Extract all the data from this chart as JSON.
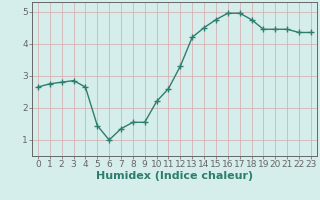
{
  "x": [
    0,
    1,
    2,
    3,
    4,
    5,
    6,
    7,
    8,
    9,
    10,
    11,
    12,
    13,
    14,
    15,
    16,
    17,
    18,
    19,
    20,
    21,
    22,
    23
  ],
  "y": [
    2.65,
    2.75,
    2.8,
    2.85,
    2.65,
    1.45,
    1.0,
    1.35,
    1.55,
    1.55,
    2.2,
    2.6,
    3.3,
    4.2,
    4.5,
    4.75,
    4.95,
    4.95,
    4.75,
    4.45,
    4.45,
    4.45,
    4.35,
    4.35
  ],
  "xlabel": "Humidex (Indice chaleur)",
  "ylim": [
    0.5,
    5.3
  ],
  "xlim": [
    -0.5,
    23.5
  ],
  "yticks": [
    1,
    2,
    3,
    4,
    5
  ],
  "xticks": [
    0,
    1,
    2,
    3,
    4,
    5,
    6,
    7,
    8,
    9,
    10,
    11,
    12,
    13,
    14,
    15,
    16,
    17,
    18,
    19,
    20,
    21,
    22,
    23
  ],
  "line_color": "#2e7d6e",
  "marker": "+",
  "marker_size": 4,
  "bg_color": "#d5eeeb",
  "grid_color": "#d4a8a8",
  "axis_color": "#666666",
  "xlabel_fontsize": 8,
  "tick_fontsize": 6.5,
  "linewidth": 1.0
}
